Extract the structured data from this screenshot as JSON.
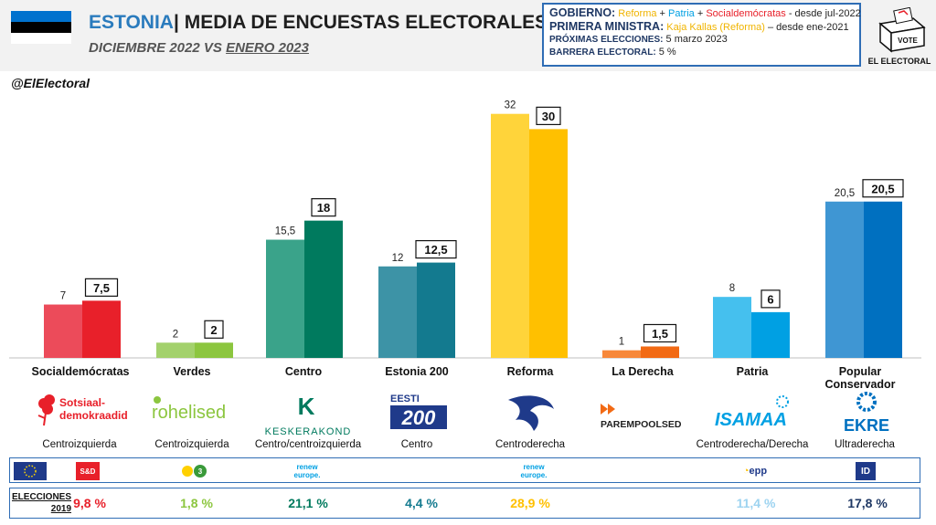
{
  "header": {
    "country": "ESTONIA",
    "separator": "|",
    "title": "MEDIA DE ENCUESTAS ELECTORALES",
    "period_prev": "DICIEMBRE 2022",
    "period_vs": "VS",
    "period_curr": "ENERO 2023",
    "flag_colors": [
      "#0072ce",
      "#000000",
      "#ffffff"
    ]
  },
  "gov_box": {
    "gobierno_label": "GOBIERNO:",
    "gobierno_p1": "Reforma",
    "plus1": " + ",
    "gobierno_p2": "Patria",
    "plus2": " + ",
    "gobierno_p3": "Socialdemócratas",
    "gobierno_since": " - desde jul-2022",
    "pm_label": "PRIMERA MINISTRA:",
    "pm_name": "Kaja Kallas (Reforma)",
    "pm_since": " – desde ene-2021",
    "next_label": "PRÓXIMAS ELECCIONES:",
    "next_value": " 5 marzo 2023",
    "barrier_label": "BARRERA ELECTORAL:",
    "barrier_value": " 5 %"
  },
  "logo": {
    "vote": "VOTE",
    "brand": "EL ELECTORAL"
  },
  "handle": "@ElElectoral",
  "chart_data": {
    "type": "bar",
    "categories": [
      "Socialdemócratas",
      "Verdes",
      "Centro",
      "Estonia 200",
      "Reforma",
      "La Derecha",
      "Patria",
      "Popular Conservador"
    ],
    "series": [
      {
        "values": [
          7,
          2,
          15.5,
          12,
          32,
          1,
          8,
          20.5
        ]
      },
      {
        "values": [
          7.5,
          2,
          18,
          12.5,
          30,
          1.5,
          6,
          20.5
        ]
      }
    ],
    "labels_prev": [
      "7",
      "2",
      "15,5",
      "12",
      "32",
      "1",
      "8",
      "20,5"
    ],
    "labels_curr": [
      "7,5",
      "2",
      "18",
      "12,5",
      "30",
      "1,5",
      "6",
      "20,5"
    ],
    "colors_prev": [
      "#ec4b5a",
      "#a3d16c",
      "#3aa38a",
      "#3d93a6",
      "#ffd43a",
      "#f7883a",
      "#45c0ee",
      "#3f96d3"
    ],
    "colors_curr": [
      "#e8202a",
      "#8cc63f",
      "#007a5e",
      "#137a8f",
      "#ffc000",
      "#f26a14",
      "#00a0e3",
      "#0070c0"
    ],
    "ylim": [
      0,
      34
    ]
  },
  "party_logos": {
    "sde": "Sotsiaal-\ndemokraadid",
    "roh": "rohelised",
    "kesk": "KESKERAKOND",
    "e200_top": "EESTI",
    "e200_num": "200",
    "parem": "PAREMPOOLSED",
    "isamaa": "ISAMAA",
    "ekre": "EKRE"
  },
  "ideologies": [
    "Centroizquierda",
    "Centroizquierda",
    "Centro/centroizquierda",
    "Centro",
    "Centroderecha",
    "",
    "Centroderecha/Derecha",
    "Ultraderecha"
  ],
  "eu_groups": {
    "sd": "S&D",
    "greens": "3",
    "renew1": "renew europe.",
    "renew2": "renew europe.",
    "epp": "epp",
    "id": "ID"
  },
  "elections": {
    "label1": "ELECCIONES",
    "label2": "2019",
    "values": [
      "9,8 %",
      "1,8 %",
      "21,1 %",
      "4,4 %",
      "28,9 %",
      "",
      "11,4 %",
      "17,8 %"
    ],
    "colors": [
      "#e8202a",
      "#8cc63f",
      "#007a5e",
      "#137a8f",
      "#ffc000",
      "#f26a14",
      "#9dd3f0",
      "#1f3864"
    ]
  }
}
